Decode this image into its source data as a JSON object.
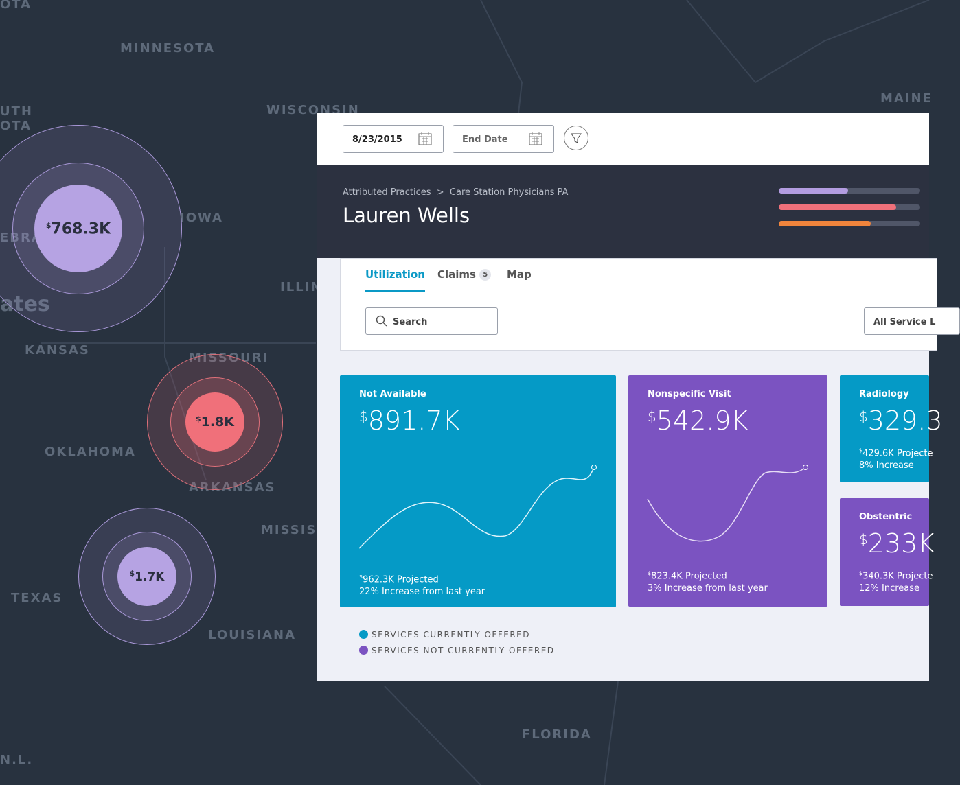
{
  "map": {
    "labels": [
      "OTA",
      "MINNESOTA",
      "UTH",
      "OTA",
      "WISCONSIN",
      "MAINE",
      "IOWA",
      "EBRA",
      "ates",
      "ILLIN",
      "KANSAS",
      "MISSOURI",
      "OKLAHOMA",
      "ARKANSAS",
      "MISSIS",
      "TEXAS",
      "LOUISIANA",
      "FLORIDA",
      "N.L."
    ],
    "bubbles": [
      {
        "currency": "$",
        "amount": "768.3K"
      },
      {
        "currency": "$",
        "amount": "1.8K"
      },
      {
        "currency": "$",
        "amount": "1.7K"
      }
    ]
  },
  "toolbar": {
    "start_date": "8/23/2015",
    "end_date": "End Date"
  },
  "header": {
    "breadcrumb": [
      "Attributed Practices",
      ">",
      "Care Station Physicians PA"
    ],
    "title": "Lauren Wells",
    "progress": [
      {
        "value": 49,
        "color": "#b39ce0"
      },
      {
        "value": 83,
        "color": "#f0707a"
      },
      {
        "value": 65,
        "color": "#f0843c"
      }
    ]
  },
  "tabs": [
    {
      "label": "Utilization"
    },
    {
      "label": "Claims",
      "badge": "5"
    },
    {
      "label": "Map"
    }
  ],
  "filters": {
    "search": "Search",
    "service": "All Service L"
  },
  "cards": [
    {
      "title": "Not Available",
      "currency": "$",
      "amount": "891.7K",
      "projected_currency": "$",
      "projected": "962.3K Projected",
      "change": "22% Increase from last year"
    },
    {
      "title": "Nonspecific Visit",
      "currency": "$",
      "amount": "542.9K",
      "projected_currency": "$",
      "projected": "823.4K Projected",
      "change": "3% Increase from last year"
    },
    {
      "title": "Radiology",
      "currency": "$",
      "amount": "329.3",
      "projected_currency": "$",
      "projected": "429.6K Projecte",
      "change": "8% Increase"
    },
    {
      "title": "Obstentric",
      "currency": "$",
      "amount": "233K",
      "projected_currency": "$",
      "projected": "340.3K Projecte",
      "change": "12% Increase"
    }
  ],
  "legend": [
    "SERVICES CURRENTLY OFFERED",
    "SERVICES NOT CURRENTLY OFFERED"
  ]
}
